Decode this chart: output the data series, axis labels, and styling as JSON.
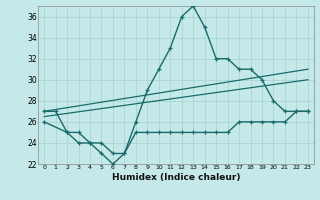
{
  "title": "",
  "xlabel": "Humidex (Indice chaleur)",
  "ylabel": "",
  "bg_color": "#c5e8e8",
  "grid_color": "#aad4d4",
  "line_color": "#1a6b6b",
  "xlim": [
    -0.5,
    23.5
  ],
  "ylim": [
    22,
    37
  ],
  "xticks": [
    0,
    1,
    2,
    3,
    4,
    5,
    6,
    7,
    8,
    9,
    10,
    11,
    12,
    13,
    14,
    15,
    16,
    17,
    18,
    19,
    20,
    21,
    22,
    23
  ],
  "yticks": [
    22,
    24,
    26,
    28,
    30,
    32,
    34,
    36
  ],
  "line1_x": [
    0,
    1,
    2,
    3,
    4,
    5,
    6,
    7,
    8,
    9,
    10,
    11,
    12,
    13,
    14,
    15,
    16,
    17,
    18,
    19,
    20,
    21,
    22,
    23
  ],
  "line1_y": [
    27,
    27,
    25,
    25,
    24,
    23,
    22,
    23,
    26,
    29,
    31,
    33,
    36,
    37,
    35,
    32,
    32,
    31,
    31,
    30,
    28,
    27,
    27,
    27
  ],
  "line2_x": [
    0,
    2,
    3,
    4,
    5,
    6,
    7,
    8,
    9,
    10,
    11,
    12,
    13,
    14,
    15,
    16,
    17,
    18,
    19,
    20,
    21,
    22,
    23
  ],
  "line2_y": [
    26,
    25,
    24,
    24,
    24,
    23,
    23,
    25,
    25,
    25,
    25,
    25,
    25,
    25,
    25,
    25,
    26,
    26,
    26,
    26,
    26,
    27,
    27
  ],
  "line3_x": [
    0,
    23
  ],
  "line3_y": [
    27,
    31
  ],
  "line4_x": [
    0,
    23
  ],
  "line4_y": [
    26.5,
    30
  ]
}
